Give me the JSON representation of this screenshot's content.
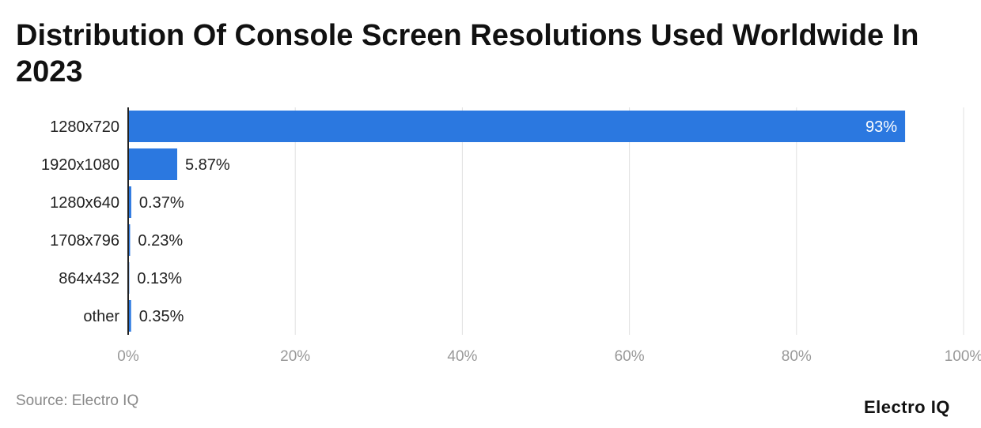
{
  "chart_data": {
    "type": "bar",
    "orientation": "horizontal",
    "title": "Distribution Of Console Screen Resolutions Used Worldwide In 2023",
    "categories": [
      "1280x720",
      "1920x1080",
      "1280x640",
      "1708x796",
      "864x432",
      "other"
    ],
    "values": [
      93,
      5.87,
      0.37,
      0.23,
      0.13,
      0.35
    ],
    "data_labels": [
      "93%",
      "5.87%",
      "0.37%",
      "0.23%",
      "0.13%",
      "0.35%"
    ],
    "xlim": [
      0,
      100
    ],
    "xticks": [
      0,
      20,
      40,
      60,
      80,
      100
    ],
    "xtick_labels": [
      "0%",
      "20%",
      "40%",
      "60%",
      "80%",
      "100%"
    ],
    "grid": true,
    "bar_color": "#2b78e0"
  },
  "footer": {
    "source": "Source: Electro IQ",
    "logo": "Electro IQ"
  }
}
